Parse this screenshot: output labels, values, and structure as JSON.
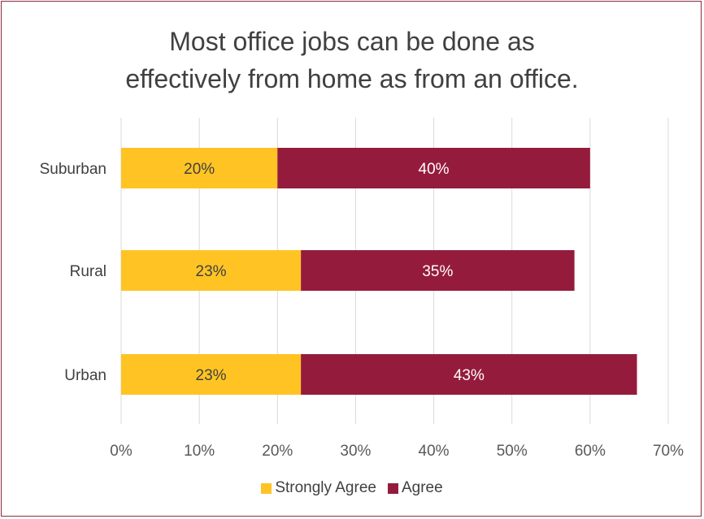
{
  "chart_data": {
    "type": "bar",
    "orientation": "horizontal",
    "stacked": true,
    "title_lines": [
      "Most office jobs can be done as",
      "effectively from home as from an office."
    ],
    "categories": [
      "Suburban",
      "Rural",
      "Urban"
    ],
    "series": [
      {
        "name": "Strongly Agree",
        "color": "#ffc423",
        "values": [
          20,
          23,
          23
        ],
        "labels": [
          "20%",
          "23%",
          "23%"
        ]
      },
      {
        "name": "Agree",
        "color": "#951b3c",
        "values": [
          40,
          35,
          43
        ],
        "labels": [
          "40%",
          "35%",
          "43%"
        ]
      }
    ],
    "xlim": [
      0,
      70
    ],
    "xticks": [
      0,
      10,
      20,
      30,
      40,
      50,
      60,
      70
    ],
    "xtick_labels": [
      "0%",
      "10%",
      "20%",
      "30%",
      "40%",
      "50%",
      "60%",
      "70%"
    ],
    "grid": true,
    "legend_position": "bottom"
  }
}
